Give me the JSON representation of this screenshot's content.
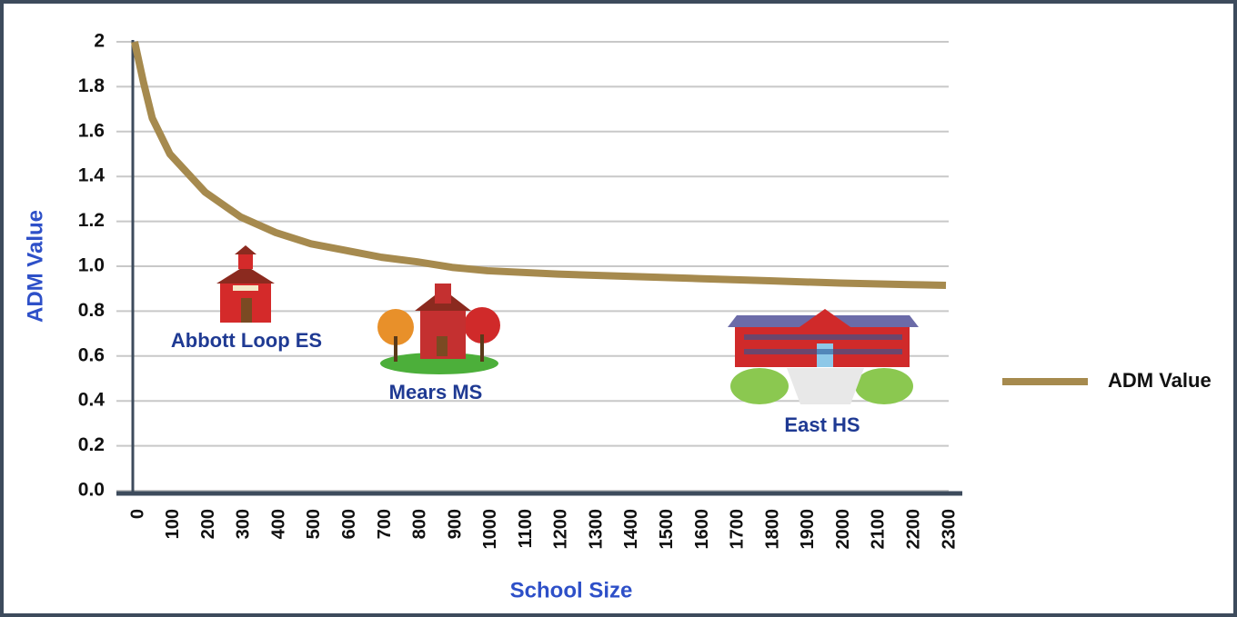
{
  "chart_data": {
    "type": "line",
    "y_axis_label": "ADM Value",
    "x_axis_label": "School Size",
    "annotations": [
      "Abbott Loop ES",
      "Mears MS",
      "East HS"
    ],
    "x": [
      0,
      25,
      50,
      100,
      200,
      300,
      400,
      500,
      600,
      700,
      800,
      900,
      1000,
      1200,
      1400,
      1600,
      1800,
      2000,
      2200,
      2300
    ],
    "series": [
      {
        "name": "ADM Value",
        "color": "#a68a4e",
        "values": [
          2.0,
          1.82,
          1.66,
          1.5,
          1.33,
          1.22,
          1.15,
          1.1,
          1.07,
          1.04,
          1.02,
          0.995,
          0.98,
          0.965,
          0.955,
          0.945,
          0.935,
          0.925,
          0.918,
          0.915
        ]
      }
    ],
    "xlim": [
      0,
      2300
    ],
    "xticks": [
      0,
      100,
      200,
      300,
      400,
      500,
      600,
      700,
      800,
      900,
      1000,
      1100,
      1200,
      1300,
      1400,
      1500,
      1600,
      1700,
      1800,
      1900,
      2000,
      2100,
      2200,
      2300
    ],
    "ylim": [
      0,
      2
    ],
    "yticks": [
      {
        "value": 0,
        "label": "0.0"
      },
      0.2,
      0.4,
      0.6,
      0.8,
      {
        "value": 1,
        "label": "1.0"
      },
      1.2,
      1.4,
      1.6,
      1.8,
      2
    ],
    "grid": true,
    "legend_position": "right"
  }
}
